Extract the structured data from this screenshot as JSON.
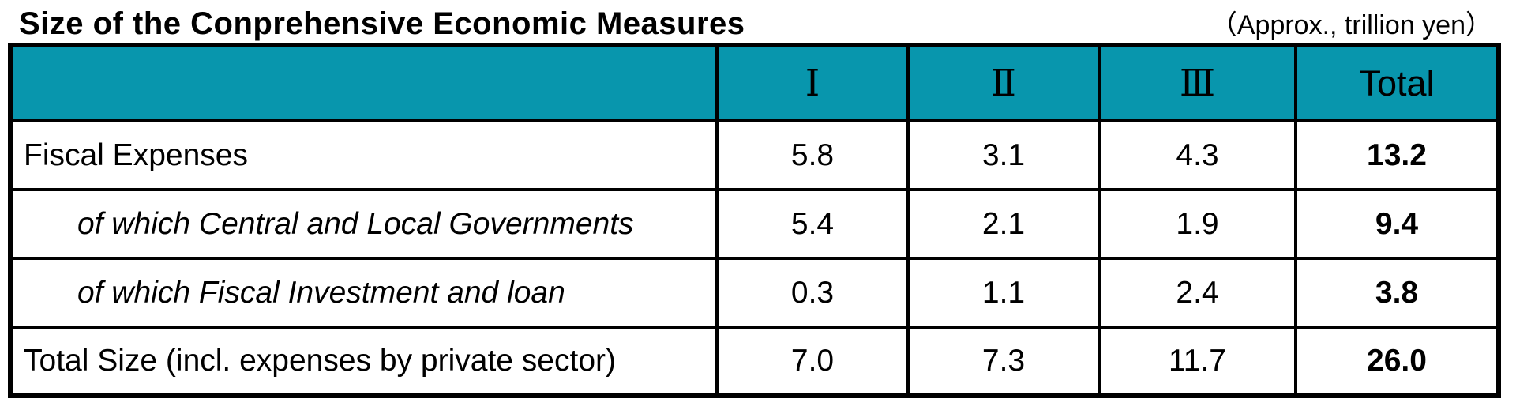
{
  "page": {
    "title": "Size of the Conprehensive Economic Measures",
    "unit_note": "（Approx., trillion yen）"
  },
  "table": {
    "columns": [
      "Ⅰ",
      "Ⅱ",
      "Ⅲ",
      "Total"
    ],
    "rows": [
      {
        "label": "Fiscal Expenses",
        "values": [
          "5.8",
          "3.1",
          "4.3"
        ],
        "total": "13.2"
      },
      {
        "label": "of which Central and Local Governments",
        "values": [
          "5.4",
          "2.1",
          "1.9"
        ],
        "total": "9.4"
      },
      {
        "label": "of which Fiscal Investment and loan",
        "values": [
          "0.3",
          "1.1",
          "2.4"
        ],
        "total": "3.8"
      },
      {
        "label": "Total Size (incl. expenses by private sector)",
        "values": [
          "7.0",
          "7.3",
          "11.7"
        ],
        "total": "26.0"
      }
    ],
    "colors": {
      "header_bg": "#0896AD",
      "border": "#000000",
      "text": "#000000"
    }
  }
}
